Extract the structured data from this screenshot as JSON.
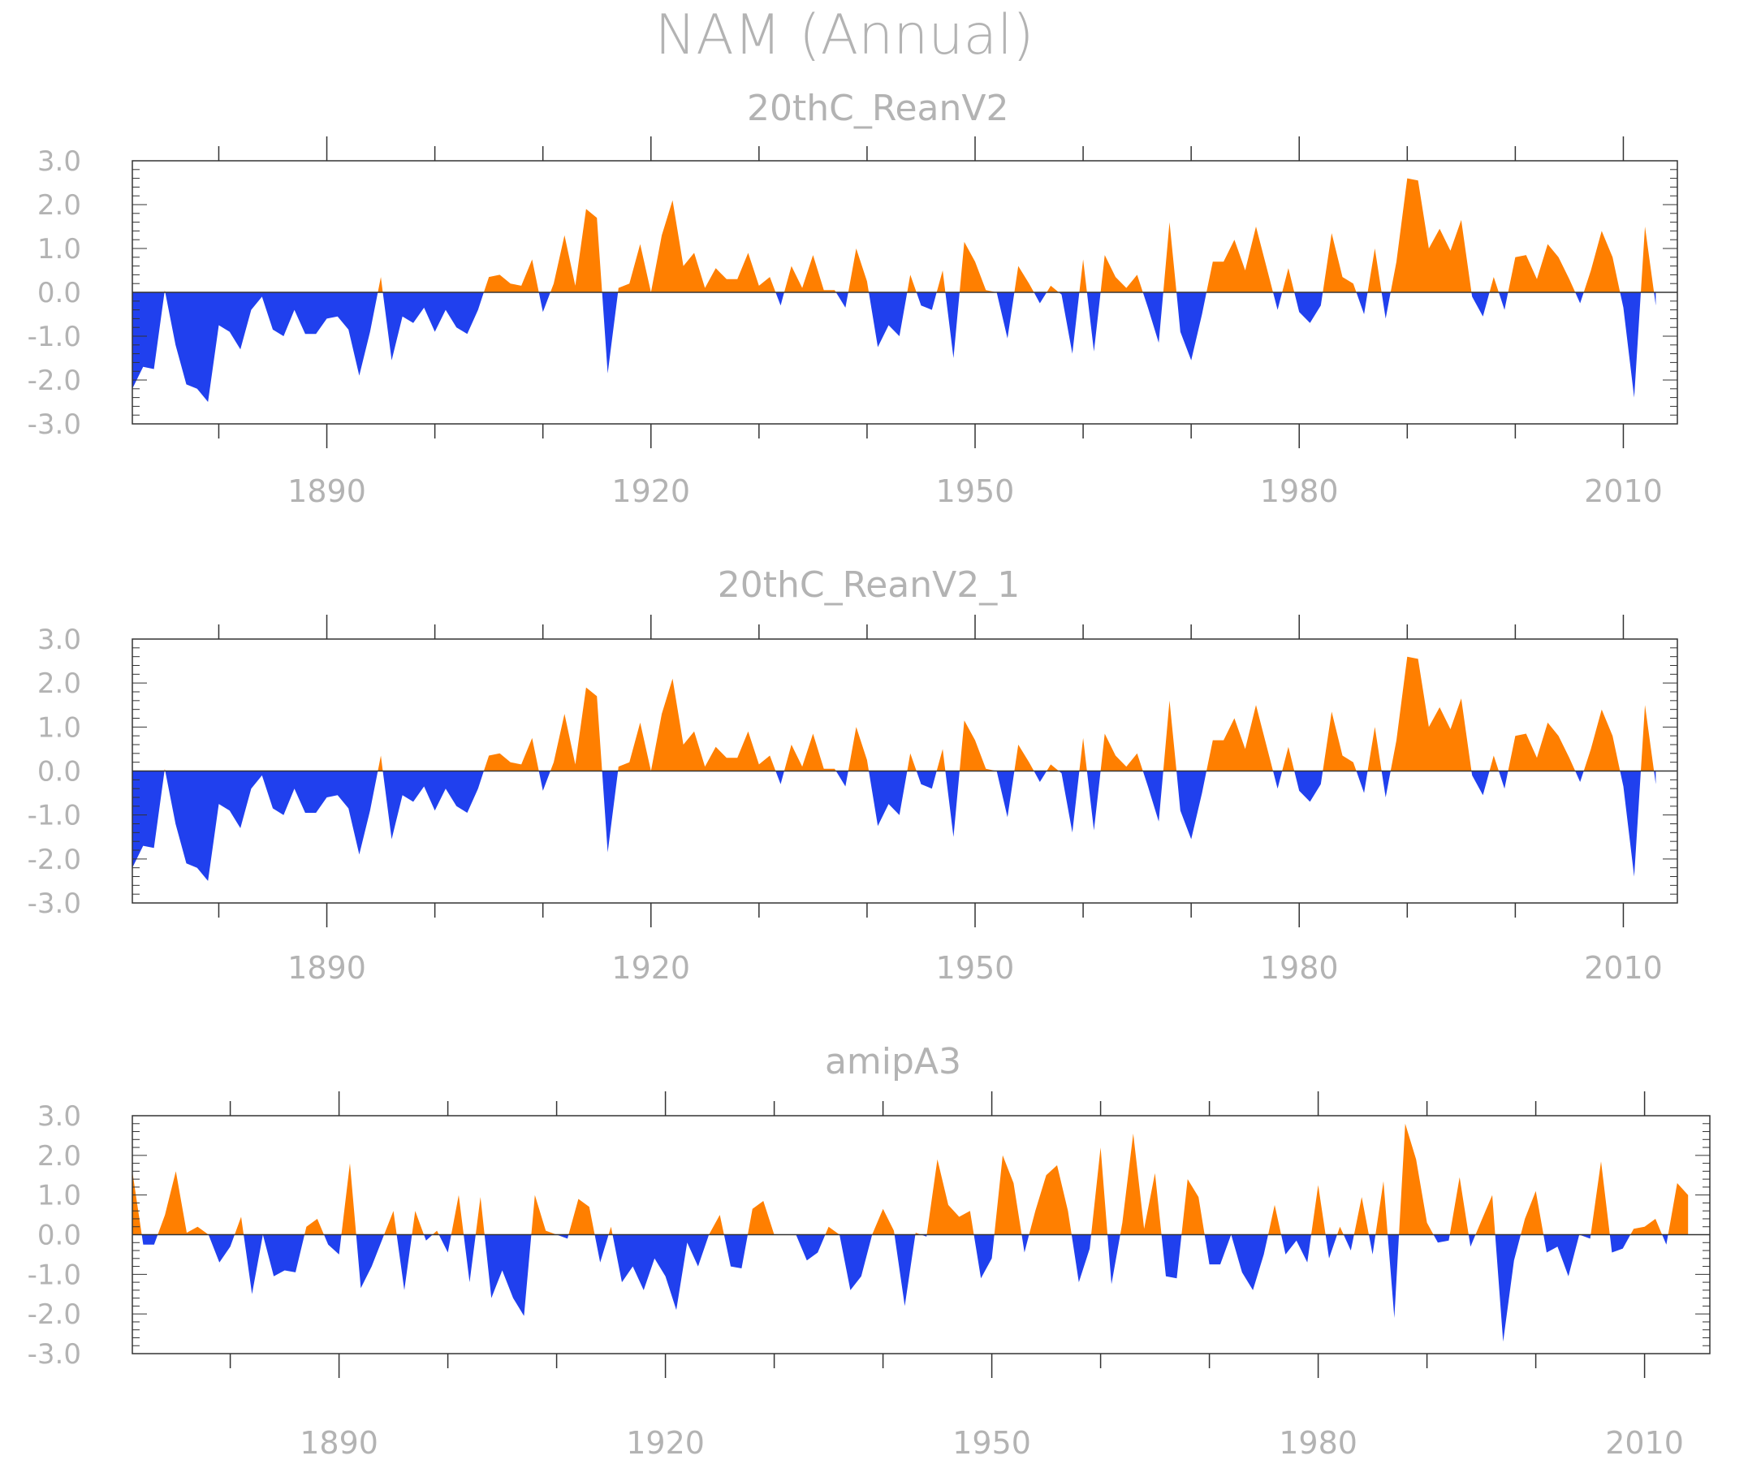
{
  "title": "NAM (Annual)",
  "colors": {
    "positive": "#ff7f00",
    "negative": "#2040ee",
    "axis": "#333333",
    "text": "#b3b3b3"
  },
  "chart_data": [
    {
      "type": "area",
      "title": "20thC_ReanV2",
      "start_year": 1872,
      "xticks": [
        1890,
        1920,
        1950,
        1980,
        2010
      ],
      "ylim": [
        -3.0,
        3.0
      ],
      "yticks": [
        "3.0",
        "2.0",
        "1.0",
        "0.0",
        "-1.0",
        "-2.0",
        "-3.0"
      ],
      "values": [
        -2.2,
        -1.7,
        -1.75,
        0.05,
        -1.2,
        -2.1,
        -2.2,
        -2.5,
        -0.75,
        -0.9,
        -1.3,
        -0.4,
        -0.1,
        -0.85,
        -1.0,
        -0.4,
        -0.95,
        -0.95,
        -0.6,
        -0.55,
        -0.85,
        -1.9,
        -0.9,
        0.35,
        -1.55,
        -0.55,
        -0.7,
        -0.35,
        -0.9,
        -0.4,
        -0.8,
        -0.95,
        -0.4,
        0.35,
        0.4,
        0.2,
        0.15,
        0.75,
        -0.45,
        0.2,
        1.3,
        0.15,
        1.9,
        1.7,
        -1.85,
        0.1,
        0.2,
        1.1,
        0.0,
        1.3,
        2.1,
        0.6,
        0.9,
        0.1,
        0.55,
        0.3,
        0.3,
        0.9,
        0.15,
        0.35,
        -0.3,
        0.6,
        0.1,
        0.85,
        0.05,
        0.05,
        -0.35,
        1.0,
        0.25,
        -1.25,
        -0.75,
        -1.0,
        0.4,
        -0.3,
        -0.4,
        0.5,
        -1.5,
        1.15,
        0.7,
        0.05,
        0.0,
        -1.05,
        0.6,
        0.2,
        -0.25,
        0.15,
        -0.05,
        -1.4,
        0.75,
        -1.35,
        0.85,
        0.35,
        0.1,
        0.4,
        -0.35,
        -1.15,
        1.6,
        -0.9,
        -1.55,
        -0.5,
        0.7,
        0.7,
        1.2,
        0.5,
        1.5,
        0.55,
        -0.4,
        0.55,
        -0.45,
        -0.7,
        -0.3,
        1.35,
        0.35,
        0.2,
        -0.5,
        1.0,
        -0.6,
        0.7,
        2.6,
        2.55,
        1.0,
        1.45,
        0.95,
        1.65,
        -0.1,
        -0.55,
        0.35,
        -0.4,
        0.8,
        0.85,
        0.3,
        1.1,
        0.8,
        0.3,
        -0.25,
        0.5,
        1.4,
        0.8,
        -0.35,
        -2.4,
        1.5,
        -0.3
      ]
    },
    {
      "type": "area",
      "title": "20thC_ReanV2_1",
      "start_year": 1872,
      "xticks": [
        1890,
        1920,
        1950,
        1980,
        2010
      ],
      "ylim": [
        -3.0,
        3.0
      ],
      "yticks": [
        "3.0",
        "2.0",
        "1.0",
        "0.0",
        "-1.0",
        "-2.0",
        "-3.0"
      ],
      "values": [
        -2.2,
        -1.7,
        -1.75,
        0.05,
        -1.2,
        -2.1,
        -2.2,
        -2.5,
        -0.75,
        -0.9,
        -1.3,
        -0.4,
        -0.1,
        -0.85,
        -1.0,
        -0.4,
        -0.95,
        -0.95,
        -0.6,
        -0.55,
        -0.85,
        -1.9,
        -0.9,
        0.35,
        -1.55,
        -0.55,
        -0.7,
        -0.35,
        -0.9,
        -0.4,
        -0.8,
        -0.95,
        -0.4,
        0.35,
        0.4,
        0.2,
        0.15,
        0.75,
        -0.45,
        0.2,
        1.3,
        0.15,
        1.9,
        1.7,
        -1.85,
        0.1,
        0.2,
        1.1,
        0.0,
        1.3,
        2.1,
        0.6,
        0.9,
        0.1,
        0.55,
        0.3,
        0.3,
        0.9,
        0.15,
        0.35,
        -0.3,
        0.6,
        0.1,
        0.85,
        0.05,
        0.05,
        -0.35,
        1.0,
        0.25,
        -1.25,
        -0.75,
        -1.0,
        0.4,
        -0.3,
        -0.4,
        0.5,
        -1.5,
        1.15,
        0.7,
        0.05,
        0.0,
        -1.05,
        0.6,
        0.2,
        -0.25,
        0.15,
        -0.05,
        -1.4,
        0.75,
        -1.35,
        0.85,
        0.35,
        0.1,
        0.4,
        -0.35,
        -1.15,
        1.6,
        -0.9,
        -1.55,
        -0.5,
        0.7,
        0.7,
        1.2,
        0.5,
        1.5,
        0.55,
        -0.4,
        0.55,
        -0.45,
        -0.7,
        -0.3,
        1.35,
        0.35,
        0.2,
        -0.5,
        1.0,
        -0.6,
        0.7,
        2.6,
        2.55,
        1.0,
        1.45,
        0.95,
        1.65,
        -0.1,
        -0.55,
        0.35,
        -0.4,
        0.8,
        0.85,
        0.3,
        1.1,
        0.8,
        0.3,
        -0.25,
        0.5,
        1.4,
        0.8,
        -0.35,
        -2.4,
        1.5,
        -0.3
      ]
    },
    {
      "type": "area",
      "title": "amipA3",
      "start_year": 1871,
      "xticks": [
        1890,
        1920,
        1950,
        1980,
        2010
      ],
      "ylim": [
        -3.0,
        3.0
      ],
      "yticks": [
        "3.0",
        "2.0",
        "1.0",
        "0.0",
        "-1.0",
        "-2.0",
        "-3.0"
      ],
      "values": [
        1.6,
        -0.25,
        -0.25,
        0.5,
        1.6,
        0.05,
        0.2,
        0.0,
        -0.7,
        -0.3,
        0.45,
        -1.5,
        0.0,
        -1.05,
        -0.9,
        -0.95,
        0.2,
        0.4,
        -0.25,
        -0.5,
        1.8,
        -1.35,
        -0.8,
        -0.1,
        0.6,
        -1.4,
        0.6,
        -0.15,
        0.1,
        -0.45,
        1.0,
        -1.2,
        0.95,
        -1.6,
        -0.9,
        -1.6,
        -2.05,
        1.0,
        0.1,
        0.0,
        -0.1,
        0.9,
        0.7,
        -0.7,
        0.2,
        -1.2,
        -0.8,
        -1.4,
        -0.6,
        -1.05,
        -1.9,
        -0.2,
        -0.8,
        0.0,
        0.5,
        -0.8,
        -0.85,
        0.65,
        0.85,
        0.0,
        0.0,
        0.0,
        -0.65,
        -0.45,
        0.2,
        0.0,
        -1.4,
        -1.05,
        0.0,
        0.65,
        0.1,
        -1.8,
        0.05,
        -0.05,
        1.9,
        0.75,
        0.45,
        0.6,
        -1.1,
        -0.6,
        2.0,
        1.3,
        -0.45,
        0.6,
        1.5,
        1.75,
        0.6,
        -1.2,
        -0.35,
        2.2,
        -1.25,
        0.3,
        2.55,
        0.15,
        1.55,
        -1.05,
        -1.1,
        1.4,
        0.95,
        -0.75,
        -0.75,
        0.0,
        -0.95,
        -1.4,
        -0.5,
        0.75,
        -0.5,
        -0.15,
        -0.7,
        1.25,
        -0.6,
        0.2,
        -0.4,
        0.95,
        -0.5,
        1.35,
        -2.1,
        2.8,
        1.9,
        0.3,
        -0.2,
        -0.15,
        1.45,
        -0.3,
        0.35,
        1.0,
        -2.7,
        -0.65,
        0.4,
        1.1,
        -0.45,
        -0.3,
        -1.05,
        0.0,
        -0.1,
        1.85,
        -0.45,
        -0.35,
        0.15,
        0.2,
        0.4,
        -0.25,
        1.3,
        1.0
      ]
    }
  ]
}
